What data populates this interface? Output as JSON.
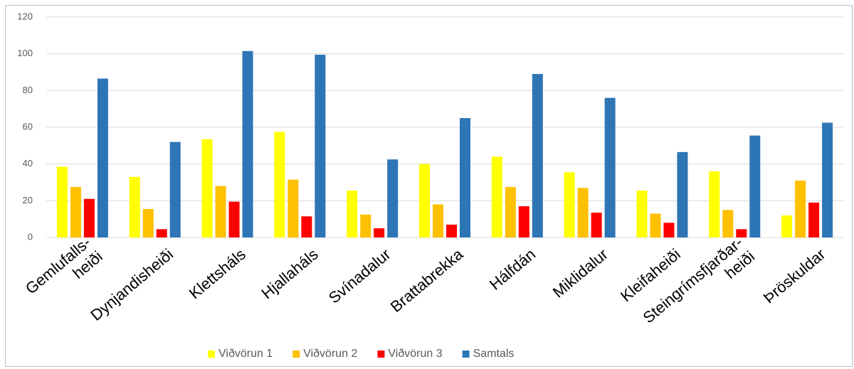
{
  "chart_data": {
    "type": "bar",
    "categories": [
      [
        "Gemlufalls-",
        "heiði"
      ],
      [
        "Dynjandisheiði"
      ],
      [
        "Klettsháls"
      ],
      [
        "Hjallaháls"
      ],
      [
        "Svínadalur"
      ],
      [
        "Brattabrekka"
      ],
      [
        "Hálfdán"
      ],
      [
        "Miklidalur"
      ],
      [
        "Kleifaheiði"
      ],
      [
        "Steingrímsfjarðar-",
        "heiði"
      ],
      [
        "Þröskuldar"
      ]
    ],
    "series": [
      {
        "name": "Viðvörun 1",
        "color": "#ffff00",
        "values": [
          38.5,
          33,
          53.5,
          57.5,
          25.5,
          40,
          44,
          35.5,
          25.5,
          36,
          12
        ]
      },
      {
        "name": "Viðvörun 2",
        "color": "#ffc000",
        "values": [
          27.5,
          15.5,
          28,
          31.5,
          12.5,
          18,
          27.5,
          27,
          13,
          15,
          31
        ]
      },
      {
        "name": "Viðvörun 3",
        "color": "#ff0000",
        "values": [
          21,
          4.5,
          19.5,
          11.5,
          5,
          7,
          17,
          13.5,
          8,
          4.5,
          19
        ]
      },
      {
        "name": "Samtals",
        "color": "#2e75b6",
        "values": [
          86.5,
          52,
          101.5,
          99.5,
          42.5,
          65,
          89,
          76,
          46.5,
          55.5,
          62.5
        ]
      }
    ],
    "ylim": [
      0,
      120
    ],
    "yticks": [
      0,
      20,
      40,
      60,
      80,
      100,
      120
    ],
    "grid": true,
    "legend": "bottom"
  }
}
